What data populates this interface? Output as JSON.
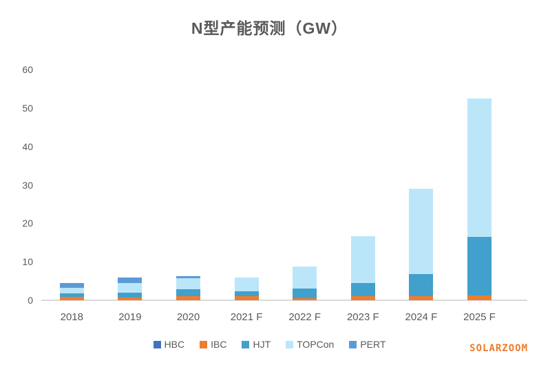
{
  "chart_data": {
    "type": "bar",
    "stacked": true,
    "title": "N型产能预测（GW）",
    "categories": [
      "2018",
      "2019",
      "2020",
      "2021 F",
      "2022 F",
      "2023 F",
      "2024 F",
      "2025 F"
    ],
    "series": [
      {
        "name": "HBC",
        "color": "#4472C4",
        "values": [
          0,
          0,
          0,
          0,
          0,
          0,
          0,
          0
        ]
      },
      {
        "name": "IBC",
        "color": "#ED7D31",
        "values": [
          0.9,
          0.8,
          1.0,
          1.0,
          0.5,
          1.0,
          1.0,
          1.3
        ]
      },
      {
        "name": "HJT",
        "color": "#41A0CC",
        "values": [
          0.9,
          1.1,
          1.8,
          1.3,
          2.6,
          3.4,
          5.8,
          15.2
        ]
      },
      {
        "name": "TOPCon",
        "color": "#BBE6FA",
        "values": [
          1.4,
          2.5,
          2.9,
          3.7,
          5.7,
          12.3,
          22.2,
          36.0
        ]
      },
      {
        "name": "PERT",
        "color": "#5B9BD5",
        "values": [
          1.2,
          1.6,
          0.5,
          0,
          0,
          0,
          0,
          0
        ]
      }
    ],
    "totals": [
      4.4,
      6.0,
      6.2,
      6.0,
      8.8,
      16.7,
      29.0,
      52.5
    ],
    "ylim": [
      0,
      60
    ],
    "yticks": [
      0,
      10,
      20,
      30,
      40,
      50,
      60
    ],
    "xlabel": "",
    "ylabel": "",
    "grid": false,
    "legend_position": "bottom"
  },
  "watermark": {
    "text": "SOLARZOOM",
    "color": "#EC7B2C"
  }
}
